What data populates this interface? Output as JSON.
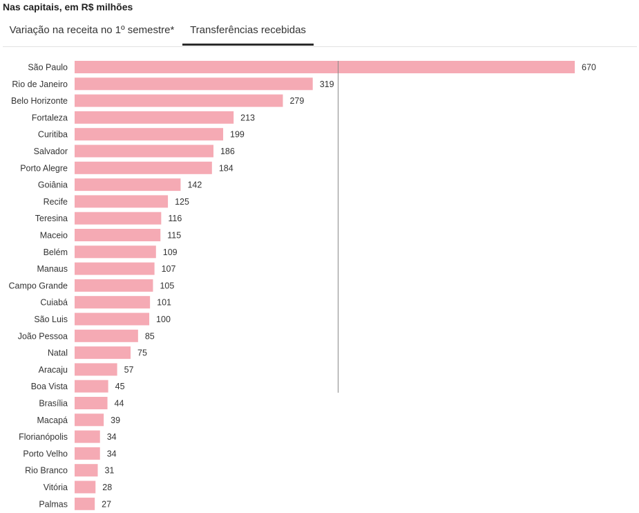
{
  "subtitle": "Nas capitais, em R$ milhões",
  "tabs": [
    {
      "label": "Variação na receita no 1º semestre*",
      "active": false
    },
    {
      "label": "Transferências recebidas",
      "active": true
    }
  ],
  "colors": {
    "bar": "#f5aab4",
    "reference_line": "#888888",
    "active_tab_underline": "#2b2b2b"
  },
  "chart_data": {
    "type": "bar",
    "orientation": "horizontal",
    "categories": [
      "São Paulo",
      "Rio de Janeiro",
      "Belo Horizonte",
      "Fortaleza",
      "Curitiba",
      "Salvador",
      "Porto Alegre",
      "Goiânia",
      "Recife",
      "Teresina",
      "Maceio",
      "Belém",
      "Manaus",
      "Campo Grande",
      "Cuiabá",
      "São Luis",
      "João Pessoa",
      "Natal",
      "Aracaju",
      "Boa Vista",
      "Brasília",
      "Macapá",
      "Florianópolis",
      "Porto Velho",
      "Rio Branco",
      "Vitória",
      "Palmas"
    ],
    "values": [
      670,
      319,
      279,
      213,
      199,
      186,
      184,
      142,
      125,
      116,
      115,
      109,
      107,
      105,
      101,
      100,
      85,
      75,
      57,
      45,
      44,
      39,
      34,
      34,
      31,
      28,
      27
    ],
    "xlim": [
      0,
      670
    ],
    "reference_line_x": 353
  }
}
